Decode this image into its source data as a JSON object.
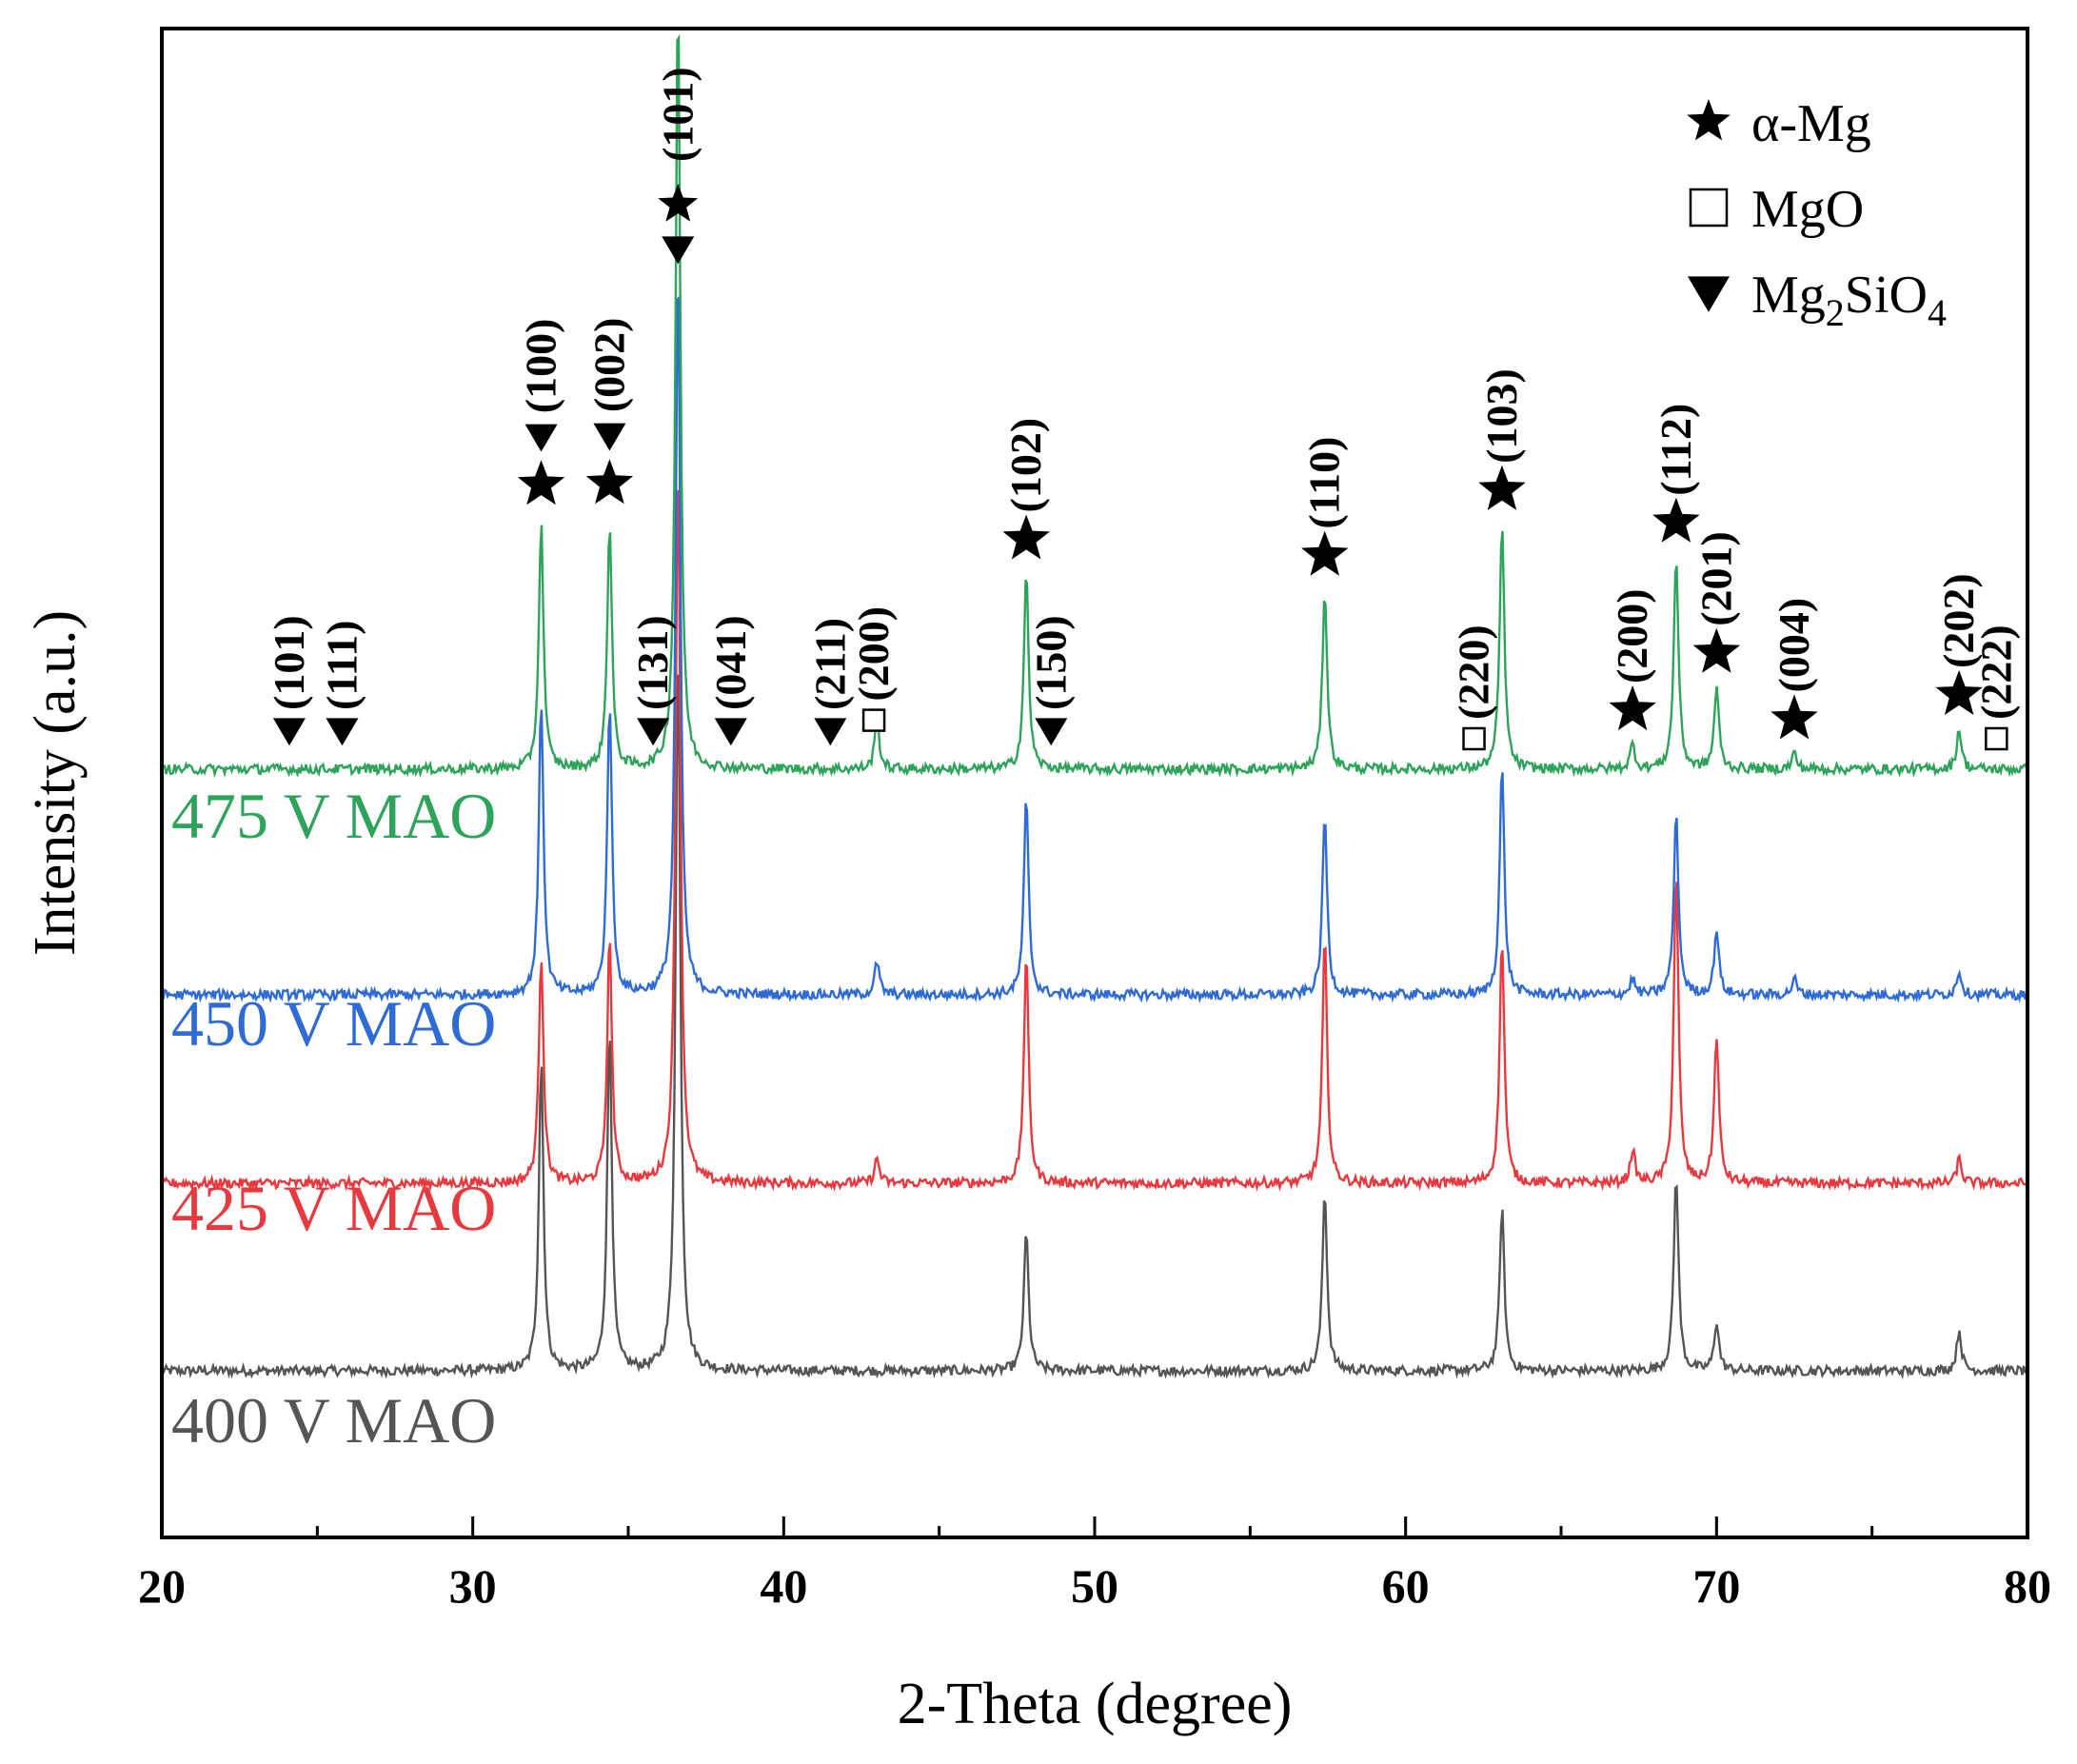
{
  "chart_data": {
    "type": "line",
    "title": "",
    "xlabel": "2-Theta (degree)",
    "ylabel": "Intensity (a.u.)",
    "xlim": [
      20,
      80
    ],
    "x_ticks": [
      20,
      30,
      40,
      50,
      60,
      70,
      80
    ],
    "grid": false,
    "legend_position": "top-right",
    "series": [
      {
        "name": "400 V MAO",
        "label": "400 V MAO",
        "color": "#555555",
        "offset": 0,
        "peaks": [
          [
            32.2,
            0.38
          ],
          [
            34.4,
            0.42
          ],
          [
            36.6,
            0.9
          ],
          [
            47.8,
            0.17
          ],
          [
            57.4,
            0.22
          ],
          [
            63.1,
            0.2
          ],
          [
            68.7,
            0.24
          ],
          [
            70.0,
            0.06
          ],
          [
            77.8,
            0.05
          ]
        ]
      },
      {
        "name": "425 V MAO",
        "label": "425 V MAO",
        "color": "#e8393f",
        "offset": 1,
        "peaks": [
          [
            32.2,
            0.28
          ],
          [
            34.4,
            0.3
          ],
          [
            36.6,
            0.9
          ],
          [
            43.0,
            0.03
          ],
          [
            47.8,
            0.28
          ],
          [
            57.4,
            0.3
          ],
          [
            63.1,
            0.3
          ],
          [
            67.3,
            0.04
          ],
          [
            68.7,
            0.38
          ],
          [
            70.0,
            0.18
          ],
          [
            77.8,
            0.03
          ]
        ]
      },
      {
        "name": "450 V MAO",
        "label": "450 V MAO",
        "color": "#2f6bd6",
        "offset": 2,
        "peaks": [
          [
            32.2,
            0.36
          ],
          [
            34.4,
            0.36
          ],
          [
            36.6,
            0.9
          ],
          [
            43.0,
            0.04
          ],
          [
            47.8,
            0.24
          ],
          [
            57.4,
            0.22
          ],
          [
            63.1,
            0.28
          ],
          [
            67.3,
            0.02
          ],
          [
            68.7,
            0.22
          ],
          [
            70.0,
            0.08
          ],
          [
            72.5,
            0.02
          ],
          [
            77.8,
            0.03
          ]
        ]
      },
      {
        "name": "475 V MAO",
        "label": "475 V MAO",
        "color": "#2ea35a",
        "offset": 3,
        "peaks": [
          [
            32.2,
            0.3
          ],
          [
            34.4,
            0.3
          ],
          [
            36.6,
            0.95
          ],
          [
            43.0,
            0.06
          ],
          [
            47.8,
            0.24
          ],
          [
            57.4,
            0.22
          ],
          [
            63.1,
            0.3
          ],
          [
            67.3,
            0.03
          ],
          [
            68.7,
            0.26
          ],
          [
            70.0,
            0.1
          ],
          [
            72.5,
            0.02
          ],
          [
            77.8,
            0.05
          ]
        ]
      }
    ],
    "phase_markers": [
      {
        "x": 24.1,
        "marker": "triangle",
        "hkl": "(101)"
      },
      {
        "x": 25.8,
        "marker": "triangle",
        "hkl": "(111)"
      },
      {
        "x": 32.2,
        "marker": "star-triangle",
        "hkl": "(100)"
      },
      {
        "x": 34.4,
        "marker": "star-triangle",
        "hkl": "(002)"
      },
      {
        "x": 35.8,
        "marker": "triangle",
        "hkl": "(131)"
      },
      {
        "x": 36.6,
        "marker": "star-triangle",
        "hkl": "(101)"
      },
      {
        "x": 38.3,
        "marker": "triangle",
        "hkl": "(041)"
      },
      {
        "x": 41.5,
        "marker": "triangle",
        "hkl": "(211)"
      },
      {
        "x": 42.9,
        "marker": "square",
        "hkl": "(200)"
      },
      {
        "x": 47.8,
        "marker": "star",
        "hkl": "(102)"
      },
      {
        "x": 48.6,
        "marker": "triangle",
        "hkl": "(150)"
      },
      {
        "x": 57.4,
        "marker": "star",
        "hkl": "(110)"
      },
      {
        "x": 62.2,
        "marker": "square",
        "hkl": "(220)"
      },
      {
        "x": 63.1,
        "marker": "star",
        "hkl": "(103)"
      },
      {
        "x": 67.3,
        "marker": "star",
        "hkl": "(200)"
      },
      {
        "x": 68.7,
        "marker": "star",
        "hkl": "(112)"
      },
      {
        "x": 70.0,
        "marker": "star",
        "hkl": "(201)"
      },
      {
        "x": 72.5,
        "marker": "star",
        "hkl": "(004)"
      },
      {
        "x": 77.8,
        "marker": "star",
        "hkl": "(202)"
      },
      {
        "x": 79.0,
        "marker": "square",
        "hkl": "(222)"
      }
    ],
    "legend": [
      {
        "marker": "star",
        "label": "α-Mg"
      },
      {
        "marker": "square",
        "label": "MgO"
      },
      {
        "marker": "triangle",
        "label": "Mg2SiO4",
        "label_main": "Mg",
        "sub1": "2",
        "mid": "SiO",
        "sub2": "4"
      }
    ]
  }
}
